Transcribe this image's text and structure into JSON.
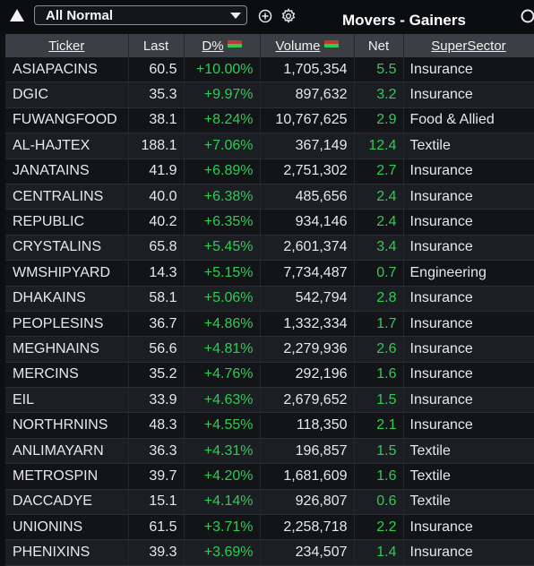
{
  "toolbar": {
    "view_select_value": "All Normal",
    "title": "Movers - Gainers"
  },
  "colors": {
    "gain": "#2ecc52",
    "header_bg": "#3b3f45",
    "flag_top": "#c0392b",
    "flag_bottom": "#2ecc52"
  },
  "table": {
    "columns": [
      "Ticker",
      "Last",
      "D%",
      "Volume",
      "Net",
      "SuperSector"
    ],
    "rows": [
      {
        "ticker": "ASIAPACINS",
        "last": "60.5",
        "pct": "+10.00%",
        "volume": "1,705,354",
        "net": "5.5",
        "sector": "Insurance"
      },
      {
        "ticker": "DGIC",
        "last": "35.3",
        "pct": "+9.97%",
        "volume": "897,632",
        "net": "3.2",
        "sector": "Insurance"
      },
      {
        "ticker": "FUWANGFOOD",
        "last": "38.1",
        "pct": "+8.24%",
        "volume": "10,767,625",
        "net": "2.9",
        "sector": "Food & Allied"
      },
      {
        "ticker": "AL-HAJTEX",
        "last": "188.1",
        "pct": "+7.06%",
        "volume": "367,149",
        "net": "12.4",
        "sector": "Textile"
      },
      {
        "ticker": "JANATAINS",
        "last": "41.9",
        "pct": "+6.89%",
        "volume": "2,751,302",
        "net": "2.7",
        "sector": "Insurance"
      },
      {
        "ticker": "CENTRALINS",
        "last": "40.0",
        "pct": "+6.38%",
        "volume": "485,656",
        "net": "2.4",
        "sector": "Insurance"
      },
      {
        "ticker": "REPUBLIC",
        "last": "40.2",
        "pct": "+6.35%",
        "volume": "934,146",
        "net": "2.4",
        "sector": "Insurance"
      },
      {
        "ticker": "CRYSTALINS",
        "last": "65.8",
        "pct": "+5.45%",
        "volume": "2,601,374",
        "net": "3.4",
        "sector": "Insurance"
      },
      {
        "ticker": "WMSHIPYARD",
        "last": "14.3",
        "pct": "+5.15%",
        "volume": "7,734,487",
        "net": "0.7",
        "sector": "Engineering"
      },
      {
        "ticker": "DHAKAINS",
        "last": "58.1",
        "pct": "+5.06%",
        "volume": "542,794",
        "net": "2.8",
        "sector": "Insurance"
      },
      {
        "ticker": "PEOPLESINS",
        "last": "36.7",
        "pct": "+4.86%",
        "volume": "1,332,334",
        "net": "1.7",
        "sector": "Insurance"
      },
      {
        "ticker": "MEGHNAINS",
        "last": "56.6",
        "pct": "+4.81%",
        "volume": "2,279,936",
        "net": "2.6",
        "sector": "Insurance"
      },
      {
        "ticker": "MERCINS",
        "last": "35.2",
        "pct": "+4.76%",
        "volume": "292,196",
        "net": "1.6",
        "sector": "Insurance"
      },
      {
        "ticker": "EIL",
        "last": "33.9",
        "pct": "+4.63%",
        "volume": "2,679,652",
        "net": "1.5",
        "sector": "Insurance"
      },
      {
        "ticker": "NORTHRNINS",
        "last": "48.3",
        "pct": "+4.55%",
        "volume": "118,350",
        "net": "2.1",
        "sector": "Insurance"
      },
      {
        "ticker": "ANLIMAYARN",
        "last": "36.3",
        "pct": "+4.31%",
        "volume": "196,857",
        "net": "1.5",
        "sector": "Textile"
      },
      {
        "ticker": "METROSPIN",
        "last": "39.7",
        "pct": "+4.20%",
        "volume": "1,681,609",
        "net": "1.6",
        "sector": "Textile"
      },
      {
        "ticker": "DACCADYE",
        "last": "15.1",
        "pct": "+4.14%",
        "volume": "926,807",
        "net": "0.6",
        "sector": "Textile"
      },
      {
        "ticker": "UNIONINS",
        "last": "61.5",
        "pct": "+3.71%",
        "volume": "2,258,718",
        "net": "2.2",
        "sector": "Insurance"
      },
      {
        "ticker": "PHENIXINS",
        "last": "39.3",
        "pct": "+3.69%",
        "volume": "234,507",
        "net": "1.4",
        "sector": "Insurance"
      }
    ]
  }
}
